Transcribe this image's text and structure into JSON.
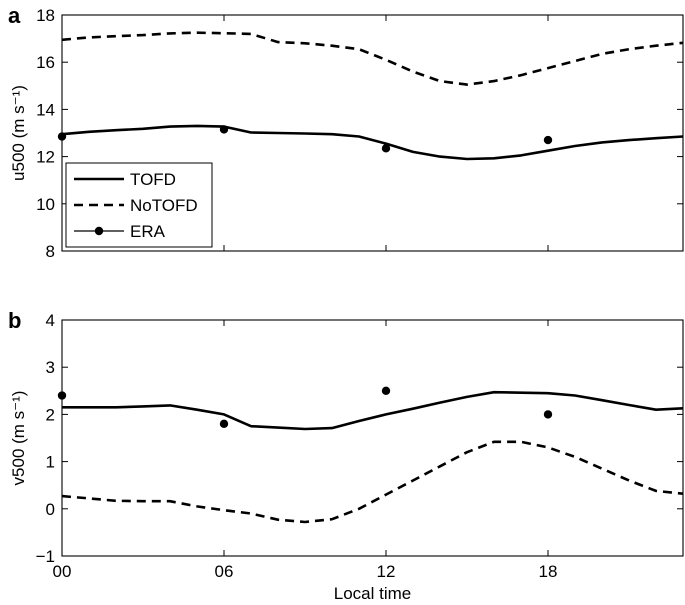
{
  "chart_data": [
    {
      "type": "line",
      "panel_label": "a",
      "ylabel": "u500 (m s⁻¹)",
      "xlabel": "",
      "xlim": [
        0,
        23
      ],
      "ylim": [
        8,
        18
      ],
      "xticks": [
        0,
        6,
        12,
        18
      ],
      "xtick_labels": [
        "",
        "",
        "",
        ""
      ],
      "yticks": [
        8,
        10,
        12,
        14,
        16,
        18
      ],
      "ytick_labels": [
        "8",
        "10",
        "12",
        "14",
        "16",
        "18"
      ],
      "legend": {
        "position": "lower-left",
        "entries": [
          "TOFD",
          "NoTOFD",
          "ERA"
        ]
      },
      "series": [
        {
          "name": "TOFD",
          "style": "solid",
          "x": [
            0,
            1,
            2,
            3,
            4,
            5,
            6,
            7,
            8,
            9,
            10,
            11,
            12,
            13,
            14,
            15,
            16,
            17,
            18,
            19,
            20,
            21,
            22,
            23
          ],
          "y": [
            12.95,
            13.05,
            13.12,
            13.18,
            13.27,
            13.3,
            13.27,
            13.02,
            13.0,
            12.98,
            12.95,
            12.85,
            12.55,
            12.2,
            12.0,
            11.9,
            11.93,
            12.05,
            12.25,
            12.45,
            12.6,
            12.7,
            12.78,
            12.85
          ]
        },
        {
          "name": "NoTOFD",
          "style": "dashed",
          "x": [
            0,
            1,
            2,
            3,
            4,
            5,
            6,
            7,
            8,
            9,
            10,
            11,
            12,
            13,
            14,
            15,
            16,
            17,
            18,
            19,
            20,
            21,
            22,
            23
          ],
          "y": [
            16.95,
            17.05,
            17.1,
            17.15,
            17.22,
            17.25,
            17.23,
            17.2,
            16.85,
            16.8,
            16.7,
            16.55,
            16.1,
            15.6,
            15.2,
            15.05,
            15.2,
            15.45,
            15.75,
            16.05,
            16.35,
            16.55,
            16.7,
            16.82
          ]
        },
        {
          "name": "ERA",
          "style": "points",
          "x": [
            0,
            6,
            12,
            18
          ],
          "y": [
            12.85,
            13.15,
            12.35,
            12.7
          ]
        }
      ]
    },
    {
      "type": "line",
      "panel_label": "b",
      "ylabel": "v500 (m s⁻¹)",
      "xlabel": "Local time",
      "xlim": [
        0,
        23
      ],
      "ylim": [
        -1,
        4
      ],
      "xticks": [
        0,
        6,
        12,
        18
      ],
      "xtick_labels": [
        "00",
        "06",
        "12",
        "18"
      ],
      "yticks": [
        -1,
        0,
        1,
        2,
        3,
        4
      ],
      "ytick_labels": [
        "−1",
        "0",
        "1",
        "2",
        "3",
        "4"
      ],
      "series": [
        {
          "name": "TOFD",
          "style": "solid",
          "x": [
            0,
            1,
            2,
            3,
            4,
            5,
            6,
            7,
            8,
            9,
            10,
            11,
            12,
            13,
            14,
            15,
            16,
            17,
            18,
            19,
            20,
            21,
            22,
            23
          ],
          "y": [
            2.15,
            2.15,
            2.15,
            2.17,
            2.19,
            2.1,
            2.0,
            1.75,
            1.72,
            1.69,
            1.71,
            1.86,
            2.0,
            2.12,
            2.25,
            2.37,
            2.47,
            2.46,
            2.45,
            2.4,
            2.3,
            2.2,
            2.1,
            2.13
          ]
        },
        {
          "name": "NoTOFD",
          "style": "dashed",
          "x": [
            0,
            1,
            2,
            3,
            4,
            5,
            6,
            7,
            8,
            9,
            10,
            11,
            12,
            13,
            14,
            15,
            16,
            17,
            18,
            19,
            20,
            21,
            22,
            23
          ],
          "y": [
            0.27,
            0.22,
            0.17,
            0.16,
            0.16,
            0.05,
            -0.03,
            -0.1,
            -0.23,
            -0.28,
            -0.22,
            0.0,
            0.3,
            0.6,
            0.9,
            1.2,
            1.42,
            1.42,
            1.3,
            1.1,
            0.85,
            0.6,
            0.38,
            0.32
          ]
        },
        {
          "name": "ERA",
          "style": "points",
          "x": [
            0,
            6,
            12,
            18
          ],
          "y": [
            2.4,
            1.8,
            2.5,
            2.0
          ]
        }
      ]
    }
  ]
}
